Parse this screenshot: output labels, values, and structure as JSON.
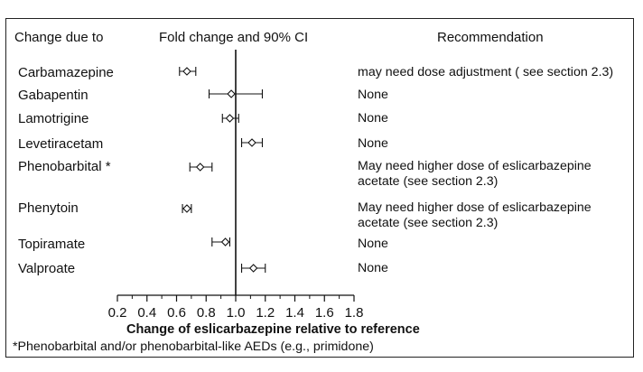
{
  "headers": {
    "change_due_to": "Change due to",
    "ci": "Fold change and 90% CI",
    "recommendation": "Recommendation"
  },
  "rows": [
    {
      "drug": "Carbamazepine",
      "recommendation": "may need dose adjustment ( see section 2.3)"
    },
    {
      "drug": "Gabapentin",
      "recommendation": "None"
    },
    {
      "drug": "Lamotrigine",
      "recommendation": "None"
    },
    {
      "drug": "Levetiracetam",
      "recommendation": "None"
    },
    {
      "drug": "Phenobarbital *",
      "recommendation": "May need higher dose of eslicarbazepine acetate (see section 2.3)"
    },
    {
      "drug": "Phenytoin",
      "recommendation": "May need higher dose of eslicarbazepine acetate (see section 2.3)"
    },
    {
      "drug": "Topiramate",
      "recommendation": "None"
    },
    {
      "drug": "Valproate",
      "recommendation": "None"
    }
  ],
  "footnote": "*Phenobarbital and/or phenobarbital-like AEDs (e.g., primidone)",
  "chart_data": {
    "type": "scatter",
    "xlabel": "Change of eslicarbazepine relative to reference",
    "xlim": [
      0.2,
      1.8
    ],
    "xticks": [
      "0.2",
      "0.4",
      "0.6",
      "0.8",
      "1.0",
      "1.2",
      "1.4",
      "1.6",
      "1.8"
    ],
    "reference_line": 1.0,
    "series": [
      {
        "categories": [
          "Carbamazepine",
          "Gabapentin",
          "Lamotrigine",
          "Levetiracetam",
          "Phenobarbital *",
          "Phenytoin",
          "Topiramate",
          "Valproate"
        ],
        "estimate": [
          0.67,
          0.97,
          0.96,
          1.11,
          0.76,
          0.67,
          0.93,
          1.12
        ],
        "ci_low": [
          0.62,
          0.82,
          0.91,
          1.04,
          0.69,
          0.64,
          0.84,
          1.04
        ],
        "ci_high": [
          0.73,
          1.18,
          1.02,
          1.18,
          0.84,
          0.7,
          0.96,
          1.2
        ]
      }
    ],
    "grid": false
  }
}
